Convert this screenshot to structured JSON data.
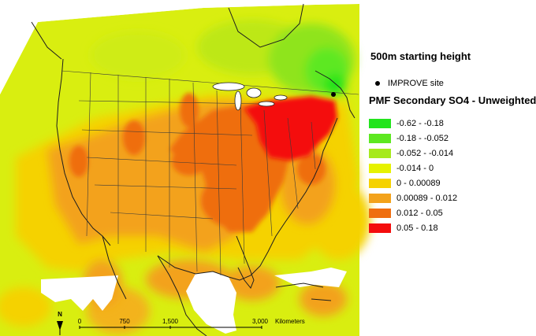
{
  "legend": {
    "title_height": "500m starting height",
    "site_label": "IMPROVE site",
    "title_layer": "PMF Secondary SO4 - Unweighted",
    "classes": [
      {
        "label": "-0.62 - -0.18",
        "color": "#22e41c"
      },
      {
        "label": "-0.18 - -0.052",
        "color": "#5de820"
      },
      {
        "label": "-0.052 - -0.014",
        "color": "#a6ea1c"
      },
      {
        "label": "-0.014 - 0",
        "color": "#e6f200"
      },
      {
        "label": "0 - 0.00089",
        "color": "#f5d200"
      },
      {
        "label": "0.00089 - 0.012",
        "color": "#f3a21b"
      },
      {
        "label": "0.012 - 0.05",
        "color": "#ef6e10"
      },
      {
        "label": "0.05 - 0.18",
        "color": "#f40c0c"
      }
    ]
  },
  "map": {
    "north_arrow_label": "N",
    "scale_bar": {
      "tick_labels": [
        "0",
        "750",
        "1,500",
        "3,000"
      ],
      "units": "Kilometers"
    }
  }
}
